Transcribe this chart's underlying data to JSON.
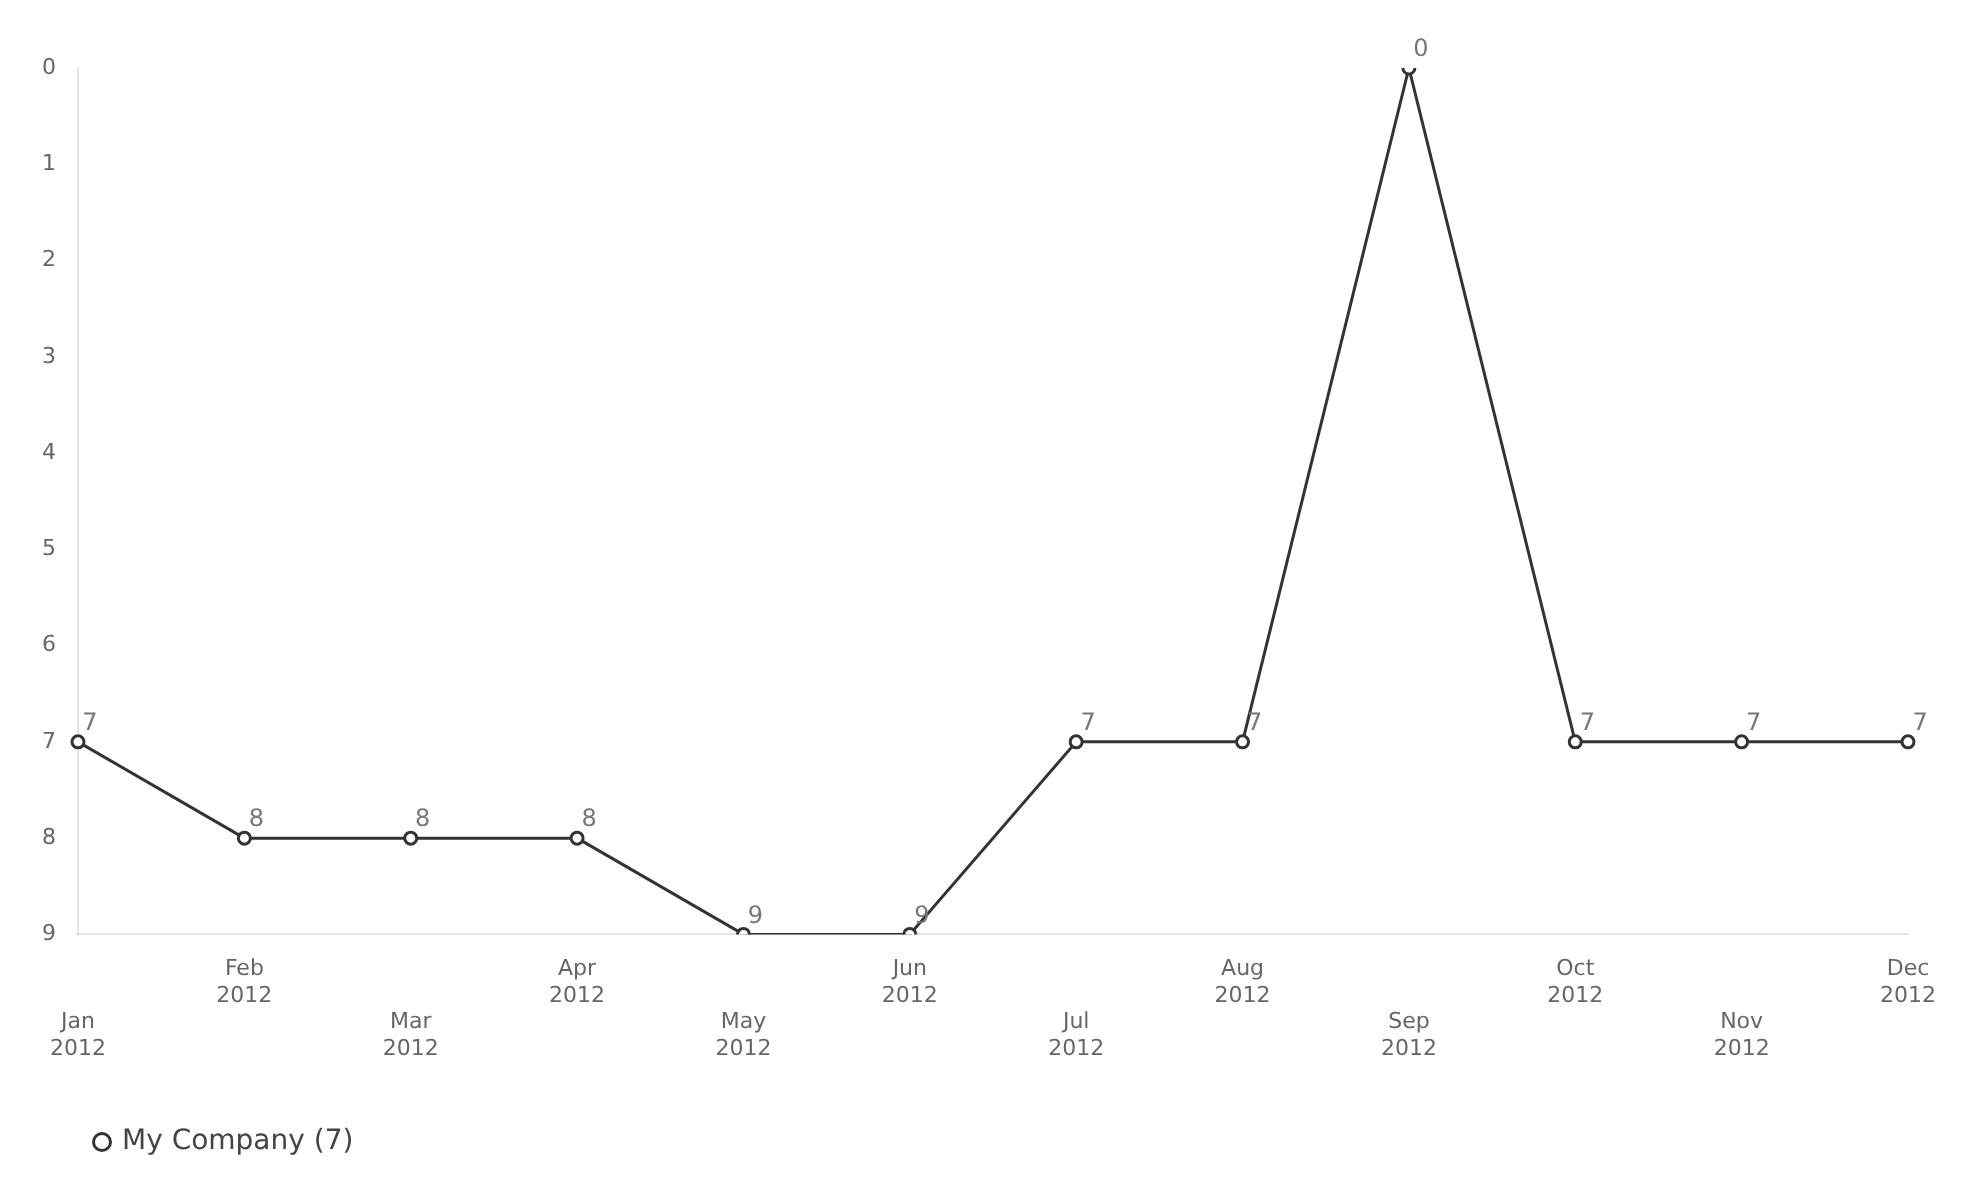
{
  "chart_data": {
    "type": "line",
    "categories": [
      "Jan 2012",
      "Feb 2012",
      "Mar 2012",
      "Apr 2012",
      "May 2012",
      "Jun 2012",
      "Jul 2012",
      "Aug 2012",
      "Sep 2012",
      "Oct 2012",
      "Nov 2012",
      "Dec 2012"
    ],
    "series": [
      {
        "name": "My Company (7)",
        "color": "#333333",
        "values": [
          7,
          8,
          8,
          8,
          9,
          9,
          7,
          7,
          0,
          7,
          7,
          7
        ]
      }
    ],
    "ylim": [
      9,
      0
    ],
    "yticks": [
      0,
      1,
      2,
      3,
      4,
      5,
      6,
      7,
      8,
      9
    ],
    "grid": false,
    "legend": "bottom left",
    "marker": "circle",
    "data_labels": true
  }
}
